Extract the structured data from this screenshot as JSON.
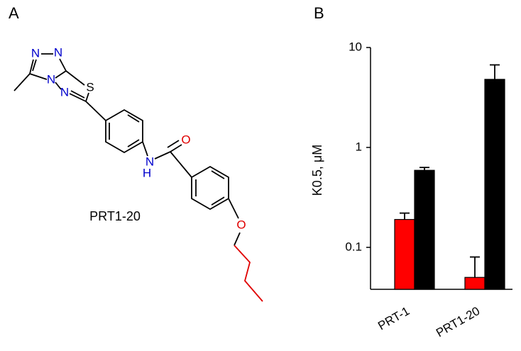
{
  "panels": [
    "A",
    "B"
  ],
  "structure": {
    "name": "PRT1-20",
    "atoms": [
      "N",
      "N",
      "N",
      "N",
      "S",
      "N",
      "H",
      "O",
      "O"
    ]
  },
  "chart_data": {
    "type": "bar",
    "ylabel": "K0.5, μM",
    "log_y": true,
    "categories": [
      "PRT-1",
      "PRT1-20"
    ],
    "series": [
      {
        "color": "#ff0000",
        "values": [
          0.19,
          0.05
        ],
        "errors": [
          0.03,
          0.03
        ]
      },
      {
        "color": "#000000",
        "values": [
          0.59,
          4.8
        ],
        "errors": [
          0.04,
          1.9
        ]
      }
    ],
    "ylim": [
      0.038,
      10
    ],
    "yticks": [
      0.1,
      1,
      10
    ]
  }
}
